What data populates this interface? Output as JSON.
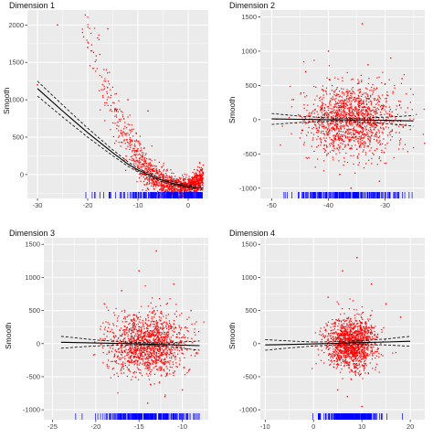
{
  "chart_data": [
    {
      "type": "scatter",
      "title": "Dimension 1",
      "ylabel": "Smooth",
      "xlim": [
        -32,
        4
      ],
      "ylim": [
        -320,
        2200
      ],
      "x_ticks": [
        -30,
        -20,
        -10,
        0
      ],
      "y_ticks": [
        0,
        500,
        1000,
        1500,
        2000
      ],
      "grid": true,
      "point_color": "#ff0000",
      "rug_color": "#0000ff",
      "panel_bg": "#ebebeb",
      "cloud": {
        "kind": "decay",
        "x_min": -22,
        "x_max": 3,
        "n": 1400
      },
      "outliers": [
        [
          -26,
          2000
        ],
        [
          -16,
          1950
        ],
        [
          -20,
          1700
        ],
        [
          -12,
          1000
        ],
        [
          -8,
          850
        ],
        [
          -30,
          1200
        ],
        [
          -14,
          700
        ]
      ],
      "smooth_line": {
        "x": [
          -30,
          -25,
          -20,
          -15,
          -12,
          -10,
          -6,
          -3,
          0,
          3
        ],
        "y": [
          1150,
          850,
          560,
          290,
          140,
          60,
          -60,
          -120,
          -160,
          -185
        ]
      },
      "confidence_band": {
        "upper": [
          1250,
          930,
          620,
          330,
          170,
          85,
          -40,
          -100,
          -140,
          -160
        ],
        "lower": [
          1050,
          770,
          500,
          250,
          110,
          35,
          -80,
          -140,
          -180,
          -210
        ]
      },
      "rug": {
        "x_min": -30,
        "x_max": 3
      }
    },
    {
      "type": "scatter",
      "title": "Dimension 2",
      "ylabel": "Smooth",
      "xlim": [
        -52,
        -23
      ],
      "ylim": [
        -1150,
        1600
      ],
      "x_ticks": [
        -50,
        -40,
        -30
      ],
      "y_ticks": [
        -1000,
        -500,
        0,
        500,
        1000,
        1500
      ],
      "grid": true,
      "point_color": "#ff0000",
      "rug_color": "#0000ff",
      "panel_bg": "#ebebeb",
      "cloud": {
        "kind": "blob",
        "center": [
          -36,
          0
        ],
        "sd": [
          4,
          260
        ],
        "n": 1400
      },
      "outliers": [
        [
          -34,
          1400
        ],
        [
          -40,
          1000
        ],
        [
          -29,
          900
        ],
        [
          -33,
          800
        ],
        [
          -44,
          700
        ],
        [
          -38,
          -800
        ],
        [
          -31,
          -900
        ],
        [
          -36,
          -1000
        ],
        [
          -27,
          600
        ]
      ],
      "smooth_line": {
        "x": [
          -50,
          -45,
          -40,
          -35,
          -30,
          -25
        ],
        "y": [
          10,
          5,
          0,
          -5,
          -10,
          -18
        ]
      },
      "confidence_band": {
        "upper": [
          90,
          50,
          25,
          20,
          35,
          60
        ],
        "lower": [
          -70,
          -40,
          -25,
          -30,
          -55,
          -95
        ]
      },
      "rug": {
        "x_min": -50,
        "x_max": -25
      }
    },
    {
      "type": "scatter",
      "title": "Dimension 3",
      "ylabel": "Smooth",
      "xlim": [
        -26,
        -7
      ],
      "ylim": [
        -1150,
        1600
      ],
      "x_ticks": [
        -25,
        -20,
        -15,
        -10
      ],
      "y_ticks": [
        -1000,
        -500,
        0,
        500,
        1000,
        1500
      ],
      "grid": true,
      "point_color": "#ff0000",
      "rug_color": "#0000ff",
      "panel_bg": "#ebebeb",
      "cloud": {
        "kind": "blob",
        "center": [
          -14,
          0
        ],
        "sd": [
          2.2,
          230
        ],
        "n": 1400
      },
      "outliers": [
        [
          -13,
          1400
        ],
        [
          -15,
          1100
        ],
        [
          -11,
          900
        ],
        [
          -17,
          800
        ],
        [
          -19,
          600
        ],
        [
          -12,
          -800
        ],
        [
          -14,
          -900
        ],
        [
          -10,
          -700
        ],
        [
          -9,
          500
        ]
      ],
      "smooth_line": {
        "x": [
          -24,
          -20,
          -16,
          -12,
          -8
        ],
        "y": [
          20,
          10,
          0,
          -15,
          -30
        ]
      },
      "confidence_band": {
        "upper": [
          110,
          55,
          20,
          10,
          40
        ],
        "lower": [
          -70,
          -35,
          -20,
          -40,
          -100
        ]
      },
      "rug": {
        "x_min": -24,
        "x_max": -8
      }
    },
    {
      "type": "scatter",
      "title": "Dimension 4",
      "ylabel": "Smooth",
      "xlim": [
        -11,
        23
      ],
      "ylim": [
        -1150,
        1600
      ],
      "x_ticks": [
        -10,
        0,
        10,
        20
      ],
      "y_ticks": [
        -1000,
        -500,
        0,
        500,
        1000,
        1500
      ],
      "grid": true,
      "point_color": "#ff0000",
      "rug_color": "#0000ff",
      "panel_bg": "#ebebeb",
      "cloud": {
        "kind": "blob",
        "center": [
          8,
          0
        ],
        "sd": [
          2.6,
          200
        ],
        "n": 1400
      },
      "outliers": [
        [
          9,
          1300
        ],
        [
          6,
          1100
        ],
        [
          12,
          900
        ],
        [
          3,
          700
        ],
        [
          15,
          600
        ],
        [
          7,
          -800
        ],
        [
          10,
          -950
        ],
        [
          5,
          -700
        ],
        [
          18,
          400
        ]
      ],
      "smooth_line": {
        "x": [
          -10,
          -5,
          0,
          5,
          10,
          15,
          20
        ],
        "y": [
          -20,
          -12,
          -5,
          5,
          15,
          25,
          35
        ]
      },
      "confidence_band": {
        "upper": [
          60,
          40,
          25,
          30,
          45,
          70,
          110
        ],
        "lower": [
          -100,
          -65,
          -35,
          -20,
          -15,
          -20,
          -40
        ]
      },
      "rug": {
        "x_min": -9,
        "x_max": 22
      }
    }
  ]
}
